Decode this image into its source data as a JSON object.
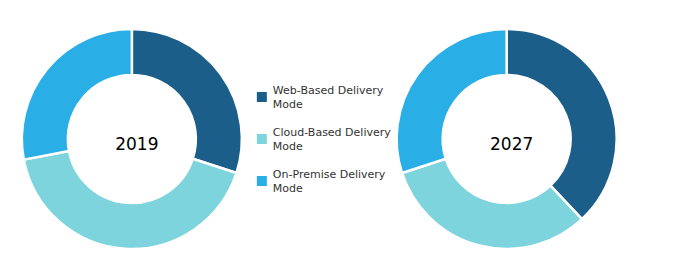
{
  "chart_data": [
    {
      "type": "pie",
      "title": "2019",
      "categories": [
        "Web-Based Delivery\nMode",
        "Cloud-Based Delivery\nMode",
        "On-Premise Delivery\nMode"
      ],
      "values": [
        30,
        42,
        28
      ],
      "colors": [
        "#1b5e8a",
        "#7dd4dc",
        "#29aee6"
      ],
      "legend": "right"
    },
    {
      "type": "pie",
      "title": "2027",
      "categories": [
        "Web-Based Delivery\nMode",
        "Cloud-Based Delivery\nMode",
        "On-Premise Delivery\nMode"
      ],
      "values": [
        38,
        32,
        30
      ],
      "colors": [
        "#1b5e8a",
        "#7dd4dc",
        "#29aee6"
      ]
    }
  ]
}
